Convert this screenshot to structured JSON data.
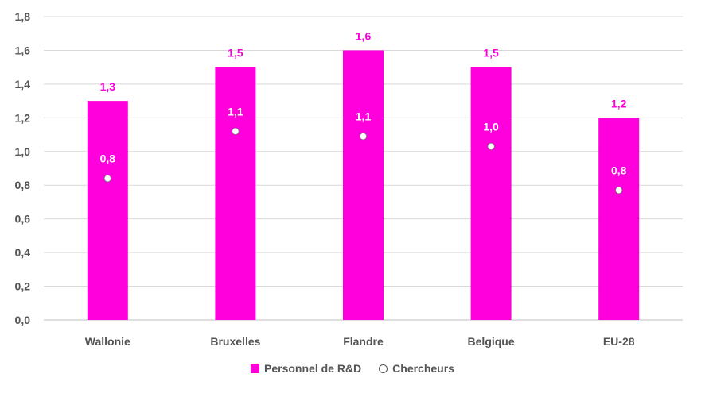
{
  "chart_data": {
    "type": "bar",
    "categories": [
      "Wallonie",
      "Bruxelles",
      "Flandre",
      "Belgique",
      "EU-28"
    ],
    "series": [
      {
        "name": "Personnel de R&D",
        "kind": "bar",
        "values": [
          1.3,
          1.5,
          1.6,
          1.5,
          1.2
        ],
        "labels": [
          "1,3",
          "1,5",
          "1,6",
          "1,5",
          "1,2"
        ]
      },
      {
        "name": "Chercheurs",
        "kind": "dot",
        "values": [
          0.84,
          1.12,
          1.09,
          1.03,
          0.77
        ],
        "labels": [
          "0,8",
          "1,1",
          "1,1",
          "1,0",
          "0,8"
        ]
      }
    ],
    "y_ticks": [
      "0,0",
      "0,2",
      "0,4",
      "0,6",
      "0,8",
      "1,0",
      "1,2",
      "1,4",
      "1,6",
      "1,8"
    ],
    "ylim": [
      0,
      1.8
    ],
    "grid": true,
    "legend_position": "bottom",
    "colors": {
      "bar": "#ff00dd",
      "dot": "#ffffff",
      "grid": "#d9d9d9",
      "text": "#555555"
    }
  },
  "legend": {
    "bar_label": "Personnel de R&D",
    "dot_label": "Chercheurs"
  }
}
